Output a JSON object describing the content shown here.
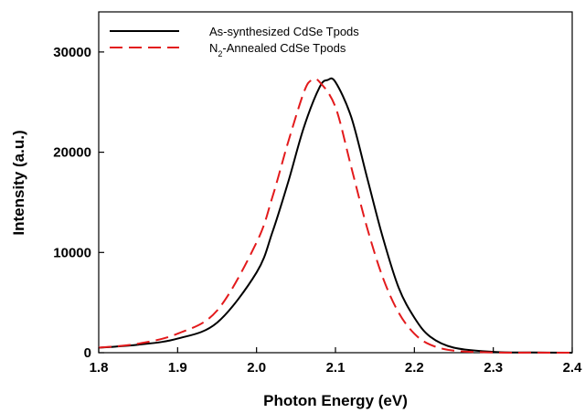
{
  "chart_data": {
    "type": "line",
    "xlabel": "Photon Energy (eV)",
    "ylabel": "Intensity (a.u.)",
    "xlim": [
      1.8,
      2.4
    ],
    "ylim": [
      0,
      34000
    ],
    "x_ticks": [
      1.8,
      1.9,
      2.0,
      2.1,
      2.2,
      2.3,
      2.4
    ],
    "x_tick_labels": [
      "1.8",
      "1.9",
      "2.0",
      "2.1",
      "2.2",
      "2.3",
      "2.4"
    ],
    "y_ticks": [
      0,
      10000,
      20000,
      30000
    ],
    "y_tick_labels": [
      "0",
      "10000",
      "20000",
      "30000"
    ],
    "grid": false,
    "legend_position": "top-left",
    "series": [
      {
        "name": "As-synthesized CdSe Tpods",
        "name_parts": [
          {
            "text": "As-synthesized CdSe Tpods",
            "sub": false
          }
        ],
        "color": "#000000",
        "dash": "solid",
        "x": [
          1.8,
          1.85,
          1.9,
          1.95,
          2.0,
          2.02,
          2.04,
          2.06,
          2.08,
          2.09,
          2.1,
          2.12,
          2.14,
          2.16,
          2.18,
          2.2,
          2.22,
          2.25,
          2.3,
          2.35,
          2.4
        ],
        "y": [
          500,
          800,
          1400,
          3000,
          8000,
          12000,
          17000,
          22500,
          26500,
          27200,
          27000,
          23500,
          17500,
          11500,
          6500,
          3500,
          1600,
          500,
          80,
          20,
          0
        ]
      },
      {
        "name": "N2-Annealed CdSe Tpods",
        "name_parts": [
          {
            "text": "N",
            "sub": false
          },
          {
            "text": "2",
            "sub": true
          },
          {
            "text": "-Annealed CdSe Tpods",
            "sub": false
          }
        ],
        "color": "#e31a1c",
        "dash": "dashed",
        "x": [
          1.8,
          1.85,
          1.9,
          1.95,
          2.0,
          2.02,
          2.04,
          2.06,
          2.07,
          2.08,
          2.1,
          2.12,
          2.14,
          2.16,
          2.18,
          2.2,
          2.22,
          2.25,
          2.3,
          2.35,
          2.4
        ],
        "y": [
          500,
          900,
          1900,
          4200,
          11000,
          15500,
          21000,
          26000,
          27200,
          27000,
          24500,
          18500,
          12500,
          7500,
          4000,
          1900,
          800,
          200,
          20,
          5,
          0
        ]
      }
    ]
  }
}
